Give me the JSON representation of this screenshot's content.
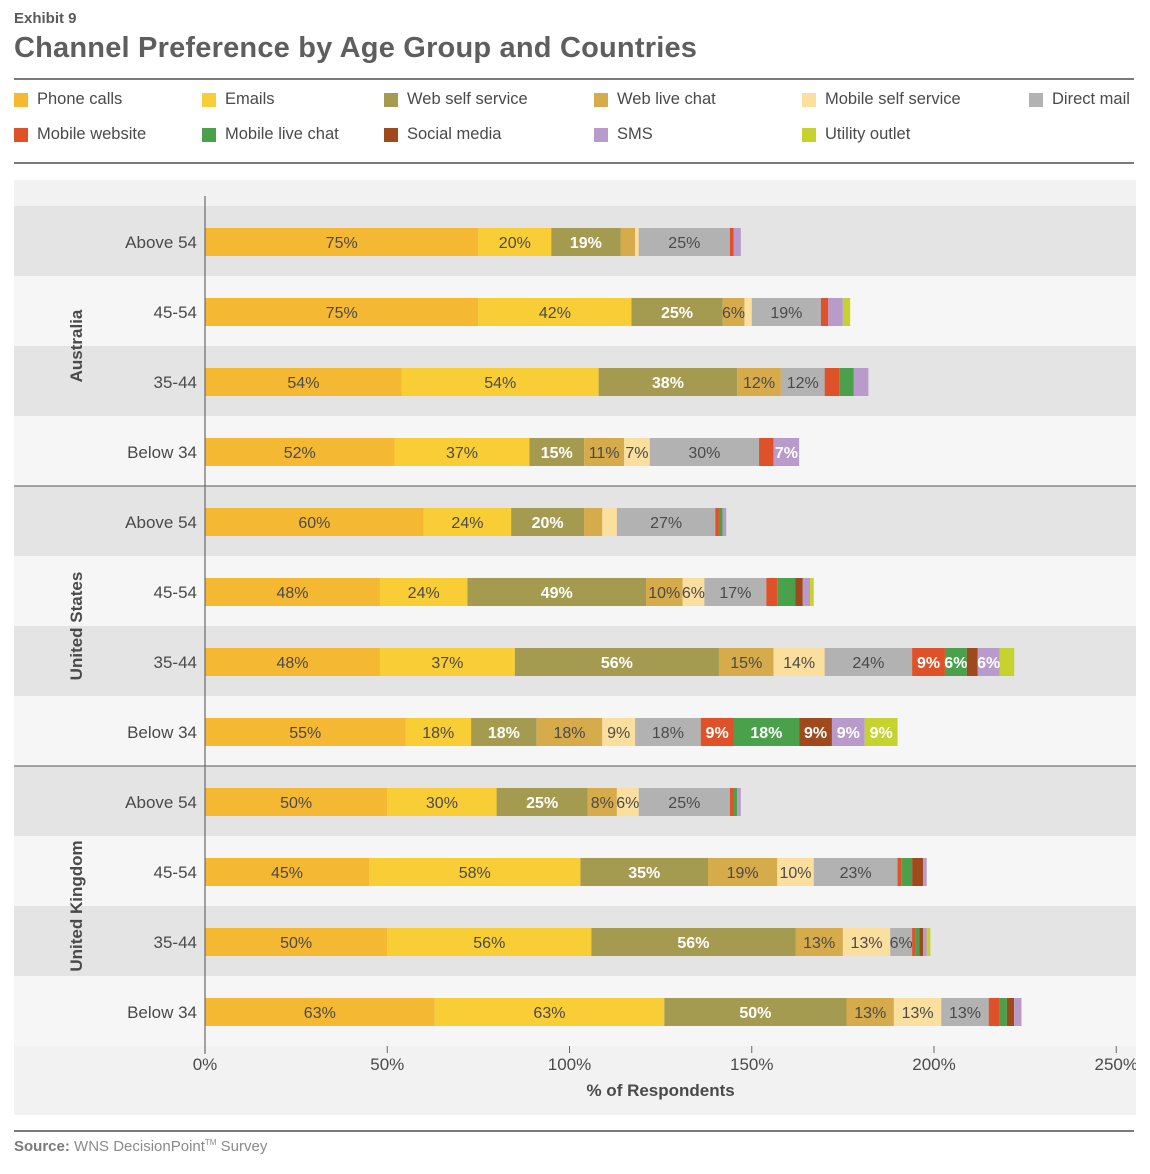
{
  "header": {
    "exhibit": "Exhibit 9",
    "title": "Channel Preference by Age Group and Countries"
  },
  "legend": [
    {
      "key": "phone",
      "label": "Phone calls",
      "color": "#f5b833"
    },
    {
      "key": "emails",
      "label": "Emails",
      "color": "#f9cd36"
    },
    {
      "key": "webself",
      "label": "Web self service",
      "color": "#a59b50"
    },
    {
      "key": "webchat",
      "label": "Web live chat",
      "color": "#d6ab4c"
    },
    {
      "key": "mobself",
      "label": "Mobile self service",
      "color": "#fbdf9f"
    },
    {
      "key": "mail",
      "label": "Direct mail",
      "color": "#b2b2b2"
    },
    {
      "key": "mobweb",
      "label": "Mobile website",
      "color": "#df5128"
    },
    {
      "key": "mobchat",
      "label": "Mobile live chat",
      "color": "#4ba04b"
    },
    {
      "key": "social",
      "label": "Social media",
      "color": "#9e4a1d"
    },
    {
      "key": "sms",
      "label": "SMS",
      "color": "#b89bcb"
    },
    {
      "key": "utility",
      "label": "Utility outlet",
      "color": "#c6d22e"
    }
  ],
  "chart_data": {
    "type": "bar",
    "orientation": "horizontal",
    "stacked": true,
    "xlabel": "% of Respondents",
    "xlim": [
      0,
      250
    ],
    "xticks": [
      "0%",
      "50%",
      "100%",
      "150%",
      "200%",
      "250%"
    ],
    "grid": false,
    "legend_position": "top",
    "series_order": [
      "Phone calls",
      "Emails",
      "Web self service",
      "Web live chat",
      "Mobile self service",
      "Direct mail",
      "Mobile website",
      "Mobile live chat",
      "Social media",
      "SMS",
      "Utility outlet"
    ],
    "groups": [
      {
        "name": "Australia",
        "rows": [
          {
            "label": "Above 54",
            "values": [
              75,
              20,
              19,
              4,
              1,
              25,
              1,
              0,
              0,
              2,
              0
            ]
          },
          {
            "label": "45-54",
            "values": [
              75,
              42,
              25,
              6,
              2,
              19,
              2,
              0,
              0,
              4,
              2
            ]
          },
          {
            "label": "35-44",
            "values": [
              54,
              54,
              38,
              12,
              0,
              12,
              4,
              4,
              0,
              4,
              0
            ]
          },
          {
            "label": "Below 34",
            "values": [
              52,
              37,
              15,
              11,
              7,
              30,
              4,
              0,
              0,
              7,
              0
            ]
          }
        ]
      },
      {
        "name": "United States",
        "rows": [
          {
            "label": "Above 54",
            "values": [
              60,
              24,
              20,
              5,
              4,
              27,
              1,
              1,
              0,
              1,
              0
            ]
          },
          {
            "label": "45-54",
            "values": [
              48,
              24,
              49,
              10,
              6,
              17,
              3,
              5,
              2,
              2,
              1
            ]
          },
          {
            "label": "35-44",
            "values": [
              48,
              37,
              56,
              15,
              14,
              24,
              9,
              6,
              3,
              6,
              4
            ]
          },
          {
            "label": "Below 34",
            "values": [
              55,
              18,
              18,
              18,
              9,
              18,
              9,
              18,
              9,
              9,
              9
            ]
          }
        ]
      },
      {
        "name": "United Kingdom",
        "rows": [
          {
            "label": "Above 54",
            "values": [
              50,
              30,
              25,
              8,
              6,
              25,
              1,
              1,
              0,
              1,
              0
            ]
          },
          {
            "label": "45-54",
            "values": [
              45,
              58,
              35,
              19,
              10,
              23,
              1,
              3,
              3,
              1,
              0
            ]
          },
          {
            "label": "35-44",
            "values": [
              50,
              56,
              56,
              13,
              13,
              6,
              1,
              1,
              1,
              1,
              1
            ]
          },
          {
            "label": "Below 34",
            "values": [
              63,
              63,
              50,
              13,
              13,
              13,
              3,
              2,
              2,
              2,
              0
            ]
          }
        ]
      }
    ]
  },
  "source": {
    "prefix": "Source:",
    "text": "WNS DecisionPoint",
    "tm": "TM",
    "suffix": " Survey"
  }
}
